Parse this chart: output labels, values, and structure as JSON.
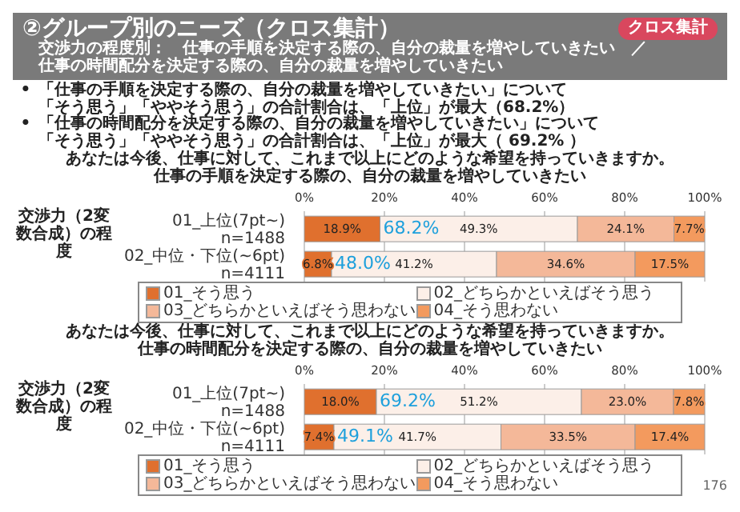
{
  "chart_data": [
    {
      "type": "bar",
      "orientation": "horizontal",
      "stacked": true,
      "title": "あなたは今後、仕事に対して、これまで以上にどのような希望を持っていきますか。",
      "subtitle": "仕事の手順を決定する際の、自分の裁量を増やしていきたい",
      "ylabel": "交渉力（2変数合成）の程度",
      "categories": [
        "01_上位(7pt~)　n=1488",
        "02_中位・下位(~6pt)　n=4111"
      ],
      "series": [
        {
          "name": "01_そう思う",
          "color": "#e0702e",
          "values": [
            18.9,
            6.8
          ],
          "value_labels": [
            "18.9%",
            "6.8%"
          ]
        },
        {
          "name": "02_どちらかといえばそう思う",
          "color": "#fcefe8",
          "values": [
            49.3,
            41.2
          ],
          "value_labels": [
            "49.3%",
            "41.2%"
          ]
        },
        {
          "name": "03_どちらかといえばそう思わない",
          "color": "#f4b899",
          "values": [
            24.1,
            34.6
          ],
          "value_labels": [
            "24.1%",
            "34.6%"
          ]
        },
        {
          "name": "04_そう思わない",
          "color": "#f39a5e",
          "values": [
            7.7,
            17.5
          ],
          "value_labels": [
            "7.7%",
            "17.5%"
          ]
        }
      ],
      "xlim": [
        0,
        100
      ],
      "xticks": [
        {
          "value": 0,
          "label": "0%"
        },
        {
          "value": 20,
          "label": "20%"
        },
        {
          "value": 40,
          "label": "40%"
        },
        {
          "value": 60,
          "label": "60%"
        },
        {
          "value": 80,
          "label": "80%"
        },
        {
          "value": 100,
          "label": "100%"
        }
      ],
      "grid": "x",
      "legend": "bottom",
      "annotations": [
        "②グループ別のニーズ（クロス集計）",
        "クロス集計",
        "交渉力の程度別：　仕事の手順を決定する際の、自分の裁量を増やしていきたい　／",
        "仕事の時間配分を決定する際の、自分の裁量を増やしていきたい",
        "•",
        "「仕事の手順を決定する際の、自分の裁量を増やしていきたい」について",
        "「そう思う」「ややそう思う」の合計割合は、「上位」が最大（68.2%）",
        "•",
        "「仕事の時間配分を決定する際の、自分の裁量を増やしていきたい」について",
        "「そう思う」「ややそう思う」の合計割合は、「上位」が最大（ 69.2% ）",
        "68.2%",
        "48.0%"
      ]
    },
    {
      "type": "bar",
      "orientation": "horizontal",
      "stacked": true,
      "title": "あなたは今後、仕事に対して、これまで以上にどのような希望を持っていきますか。",
      "subtitle": "仕事の時間配分を決定する際の、自分の裁量を増やしていきたい",
      "ylabel": "交渉力（2変数合成）の程度",
      "categories": [
        "01_上位(7pt~)　n=1488",
        "02_中位・下位(~6pt)　n=4111"
      ],
      "series": [
        {
          "name": "01_そう思う",
          "color": "#e0702e",
          "values": [
            18.0,
            7.4
          ],
          "value_labels": [
            "18.0%",
            "7.4%"
          ]
        },
        {
          "name": "02_どちらかといえばそう思う",
          "color": "#fcefe8",
          "values": [
            51.2,
            41.7
          ],
          "value_labels": [
            "51.2%",
            "41.7%"
          ]
        },
        {
          "name": "03_どちらかといえばそう思わない",
          "color": "#f4b899",
          "values": [
            23.0,
            33.5
          ],
          "value_labels": [
            "23.0%",
            "33.5%"
          ]
        },
        {
          "name": "04_そう思わない",
          "color": "#f39a5e",
          "values": [
            7.8,
            17.4
          ],
          "value_labels": [
            "7.8%",
            "17.4%"
          ]
        }
      ],
      "xlim": [
        0,
        100
      ],
      "xticks": [
        {
          "value": 0,
          "label": "0%"
        },
        {
          "value": 20,
          "label": "20%"
        },
        {
          "value": 40,
          "label": "40%"
        },
        {
          "value": 60,
          "label": "60%"
        },
        {
          "value": 80,
          "label": "80%"
        },
        {
          "value": 100,
          "label": "100%"
        }
      ],
      "grid": "x",
      "legend": "bottom",
      "annotations": [
        "176",
        "69.2%",
        "49.1%"
      ]
    }
  ]
}
